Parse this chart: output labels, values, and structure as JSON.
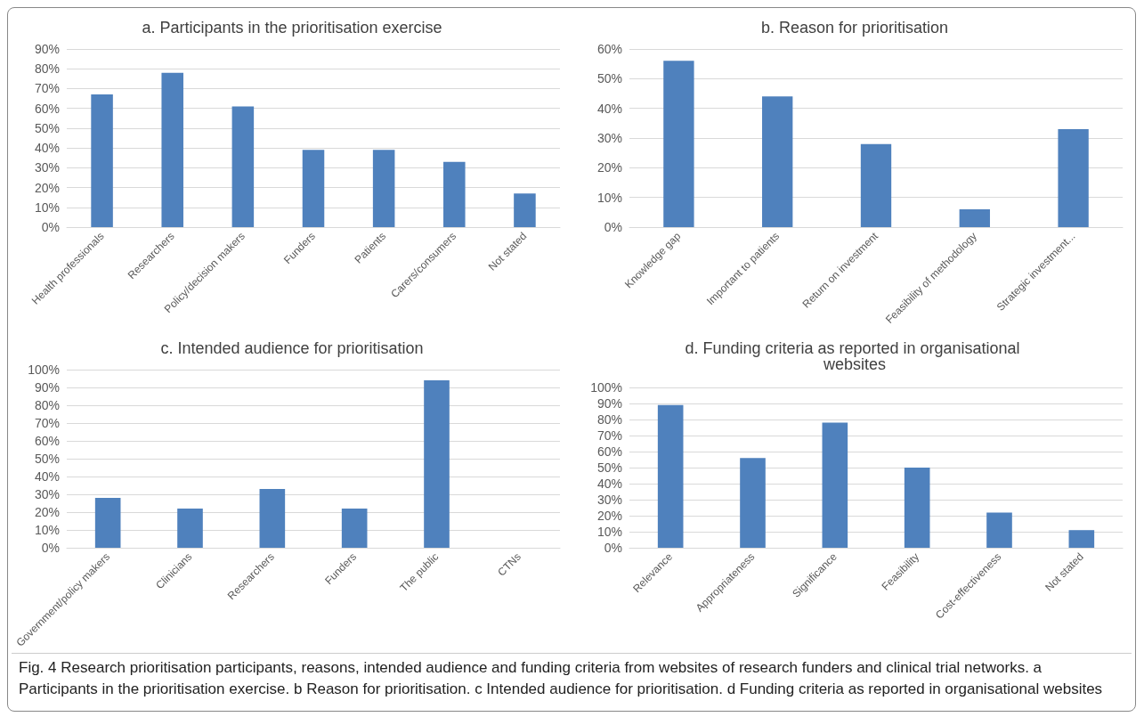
{
  "chart_data": [
    {
      "type": "bar",
      "title": "a. Participants in the prioritisation exercise",
      "categories": [
        "Health professionals",
        "Researchers",
        "Policy/decision makers",
        "Funders",
        "Patients",
        "Carers/consumers",
        "Not stated"
      ],
      "values": [
        67,
        78,
        61,
        39,
        39,
        33,
        17
      ],
      "color": "#4f81bd",
      "ylim": [
        0,
        90
      ],
      "yticks": [
        {
          "value": 0,
          "label": "0%"
        },
        {
          "value": 10,
          "label": "10%"
        },
        {
          "value": 20,
          "label": "20%"
        },
        {
          "value": 30,
          "label": "30%"
        },
        {
          "value": 40,
          "label": "40%"
        },
        {
          "value": 50,
          "label": "50%"
        },
        {
          "value": 60,
          "label": "60%"
        },
        {
          "value": 70,
          "label": "70%"
        },
        {
          "value": 80,
          "label": "80%"
        },
        {
          "value": 90,
          "label": "90%"
        }
      ],
      "grid": "y",
      "annotations": [
        "Fig. 4  Research prioritisation participants, reasons, intended audience and funding criteria from websites of research funders and clinical trial networks. a Participants in the prioritisation exercise. b Reason for prioritisation. c Intended audience for prioritisation. d Funding criteria as reported in organisational websites"
      ]
    },
    {
      "type": "bar",
      "title": "b. Reason for prioritisation",
      "categories": [
        "Knowledge gap",
        "Important to patients",
        "Return on investment",
        "Feasibility of methodology",
        "Strategic investment..."
      ],
      "values": [
        56,
        44,
        28,
        6,
        33
      ],
      "color": "#4f81bd",
      "ylim": [
        0,
        60
      ],
      "yticks": [
        {
          "value": 0,
          "label": "0%"
        },
        {
          "value": 10,
          "label": "10%"
        },
        {
          "value": 20,
          "label": "20%"
        },
        {
          "value": 30,
          "label": "30%"
        },
        {
          "value": 40,
          "label": "40%"
        },
        {
          "value": 50,
          "label": "50%"
        },
        {
          "value": 60,
          "label": "60%"
        }
      ],
      "grid": "y"
    },
    {
      "type": "bar",
      "title": "c. Intended audience for prioritisation",
      "categories": [
        "Government/policy makers",
        "Clinicians",
        "Researchers",
        "Funders",
        "The public",
        "CTNs"
      ],
      "values": [
        28,
        22,
        33,
        22,
        94,
        0
      ],
      "color": "#4f81bd",
      "ylim": [
        0,
        100
      ],
      "yticks": [
        {
          "value": 0,
          "label": "0%"
        },
        {
          "value": 10,
          "label": "10%"
        },
        {
          "value": 20,
          "label": "20%"
        },
        {
          "value": 30,
          "label": "30%"
        },
        {
          "value": 40,
          "label": "40%"
        },
        {
          "value": 50,
          "label": "50%"
        },
        {
          "value": 60,
          "label": "60%"
        },
        {
          "value": 70,
          "label": "70%"
        },
        {
          "value": 80,
          "label": "80%"
        },
        {
          "value": 90,
          "label": "90%"
        },
        {
          "value": 100,
          "label": "100%"
        }
      ],
      "grid": "y"
    },
    {
      "type": "bar",
      "title": "d. Funding criteria as reported in organisational websites",
      "categories": [
        "Relevance",
        "Appropriateness",
        "Significance",
        "Feasibility",
        "Cost-effectiveness",
        "Not stated"
      ],
      "values": [
        89,
        56,
        78,
        50,
        22,
        11
      ],
      "color": "#4f81bd",
      "ylim": [
        0,
        100
      ],
      "yticks": [
        {
          "value": 0,
          "label": "0%"
        },
        {
          "value": 10,
          "label": "10%"
        },
        {
          "value": 20,
          "label": "20%"
        },
        {
          "value": 30,
          "label": "30%"
        },
        {
          "value": 40,
          "label": "40%"
        },
        {
          "value": 50,
          "label": "50%"
        },
        {
          "value": 60,
          "label": "60%"
        },
        {
          "value": 70,
          "label": "70%"
        },
        {
          "value": 80,
          "label": "80%"
        },
        {
          "value": 90,
          "label": "90%"
        },
        {
          "value": 100,
          "label": "100%"
        }
      ],
      "grid": "y"
    }
  ]
}
